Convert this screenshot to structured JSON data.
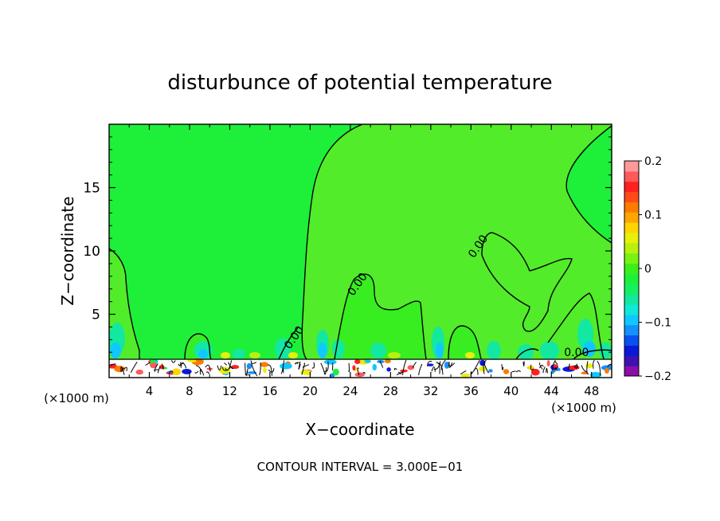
{
  "chart_data": {
    "type": "heatmap",
    "title": "disturbunce of potential temperature",
    "xlabel": "X−coordinate",
    "ylabel": "Z−coordinate",
    "x_unit_left": "(×1000 m)",
    "x_unit_right": "(×1000 m)",
    "xlim": [
      0,
      50
    ],
    "ylim": [
      0,
      20
    ],
    "x_ticks": [
      {
        "value": 4,
        "label": "4"
      },
      {
        "value": 8,
        "label": "8"
      },
      {
        "value": 12,
        "label": "12"
      },
      {
        "value": 16,
        "label": "16"
      },
      {
        "value": 20,
        "label": "20"
      },
      {
        "value": 24,
        "label": "24"
      },
      {
        "value": 28,
        "label": "28"
      },
      {
        "value": 32,
        "label": "32"
      },
      {
        "value": 36,
        "label": "36"
      },
      {
        "value": 40,
        "label": "40"
      },
      {
        "value": 44,
        "label": "44"
      },
      {
        "value": 48,
        "label": "48"
      }
    ],
    "y_ticks": [
      {
        "value": 5,
        "label": "5"
      },
      {
        "value": 10,
        "label": "10"
      },
      {
        "value": 15,
        "label": "15"
      }
    ],
    "colorbar": {
      "min": -0.2,
      "max": 0.2,
      "ticks": [
        {
          "value": 0.2,
          "label": "0.2"
        },
        {
          "value": 0.1,
          "label": "0.1"
        },
        {
          "value": 0,
          "label": "0"
        },
        {
          "value": -0.1,
          "label": "−0.1"
        },
        {
          "value": -0.2,
          "label": "−0.2"
        }
      ],
      "colors": [
        "#8a0fa8",
        "#3c12b0",
        "#0a18d8",
        "#0a50f0",
        "#1690ff",
        "#10c8ff",
        "#10e8d8",
        "#12e8a0",
        "#14f060",
        "#1ef03a",
        "#3aef1a",
        "#78f214",
        "#b8f010",
        "#e6f00c",
        "#ffd400",
        "#ffa500",
        "#ff7a00",
        "#ff4a1a",
        "#ff2020",
        "#ff5a5a",
        "#ff9999"
      ]
    },
    "contour_labels": [
      {
        "text": "0.00",
        "x": 18.7,
        "y": 3.0
      },
      {
        "text": "0.00",
        "x": 25.0,
        "y": 7.2
      },
      {
        "text": "0.00",
        "x": 37.0,
        "y": 10.2
      },
      {
        "text": "0.00",
        "x": 46.5,
        "y": 1.7
      }
    ],
    "contour_interval_label": "CONTOUR INTERVAL = 3.000E−01",
    "field_background_value": 0.02
  }
}
